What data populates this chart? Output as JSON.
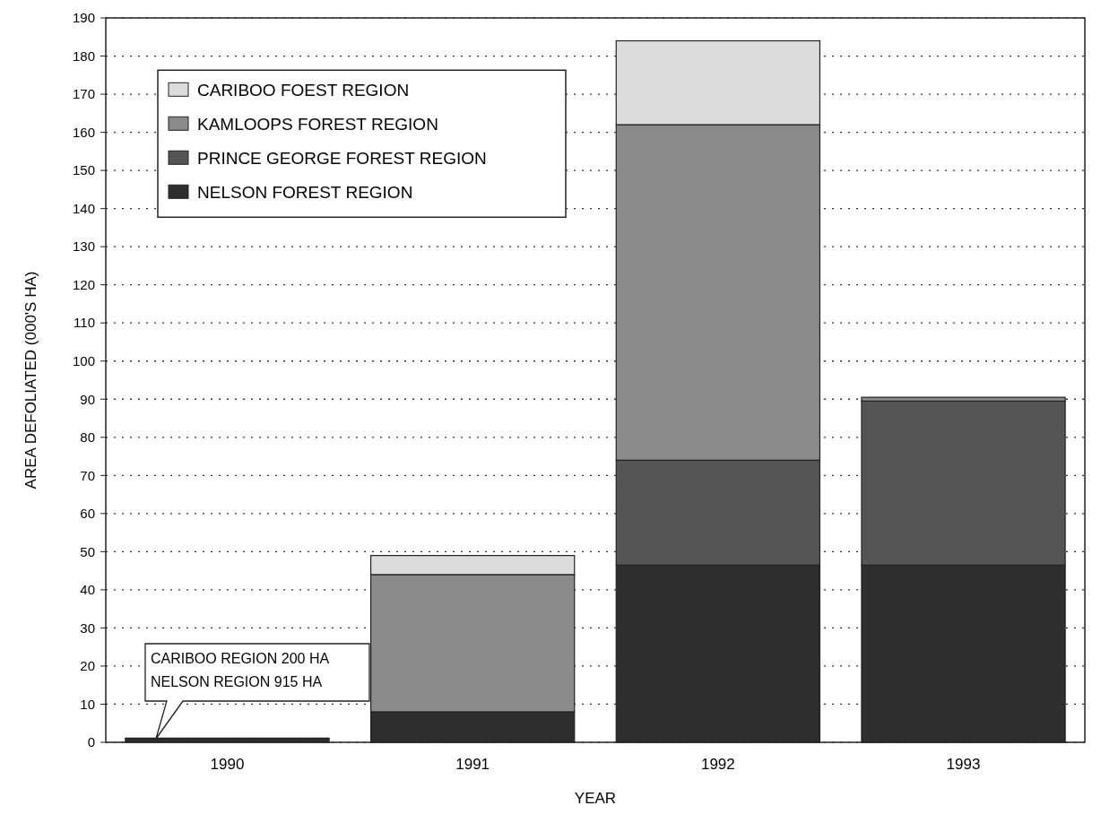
{
  "chart_data": {
    "type": "bar",
    "stacked": true,
    "xlabel": "YEAR",
    "ylabel": "AREA DEFOLIATED (000'S HA)",
    "categories": [
      "1990",
      "1991",
      "1992",
      "1993"
    ],
    "series": [
      {
        "name": "NELSON FOREST REGION",
        "color": "#2e2e2e",
        "values": [
          0.9,
          8,
          46.5,
          46.5
        ]
      },
      {
        "name": "PRINCE GEORGE FOREST REGION",
        "color": "#555555",
        "values": [
          null,
          null,
          27.5,
          43
        ]
      },
      {
        "name": "KAMLOOPS FOREST REGION",
        "color": "#8a8a8a",
        "values": [
          null,
          36,
          88,
          1
        ]
      },
      {
        "name": "CARIBOO FOEST REGION",
        "color": "#dcdcdc",
        "values": [
          0.2,
          5,
          22,
          null
        ]
      }
    ],
    "ylim": [
      0,
      190
    ],
    "yticks": [
      0,
      10,
      20,
      30,
      40,
      50,
      60,
      70,
      80,
      90,
      100,
      110,
      120,
      130,
      140,
      150,
      160,
      170,
      180,
      190
    ],
    "grid": "y",
    "legend": "top left",
    "annotations": [
      "CARIBOO REGION 200 HA\nNELSON REGION 915 HA"
    ]
  }
}
